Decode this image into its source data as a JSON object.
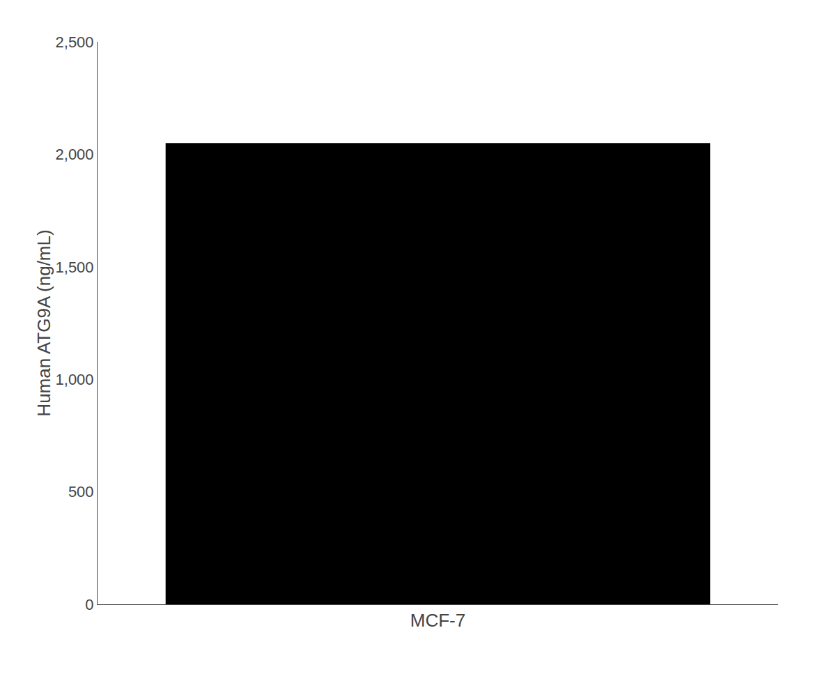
{
  "chart_data": {
    "type": "bar",
    "categories": [
      "MCF-7"
    ],
    "values": [
      2049.94
    ],
    "color": "#000000",
    "ylabel": "Human ATG9A (ng/mL)",
    "ylim": [
      0,
      2500
    ],
    "yticks": [
      0,
      500,
      {
        "value": 1000,
        "label": "1,000"
      },
      {
        "value": 1500,
        "label": "1,500"
      },
      {
        "value": 2000,
        "label": "2,000"
      },
      {
        "value": 2500,
        "label": "2,500"
      }
    ],
    "grid": false
  }
}
